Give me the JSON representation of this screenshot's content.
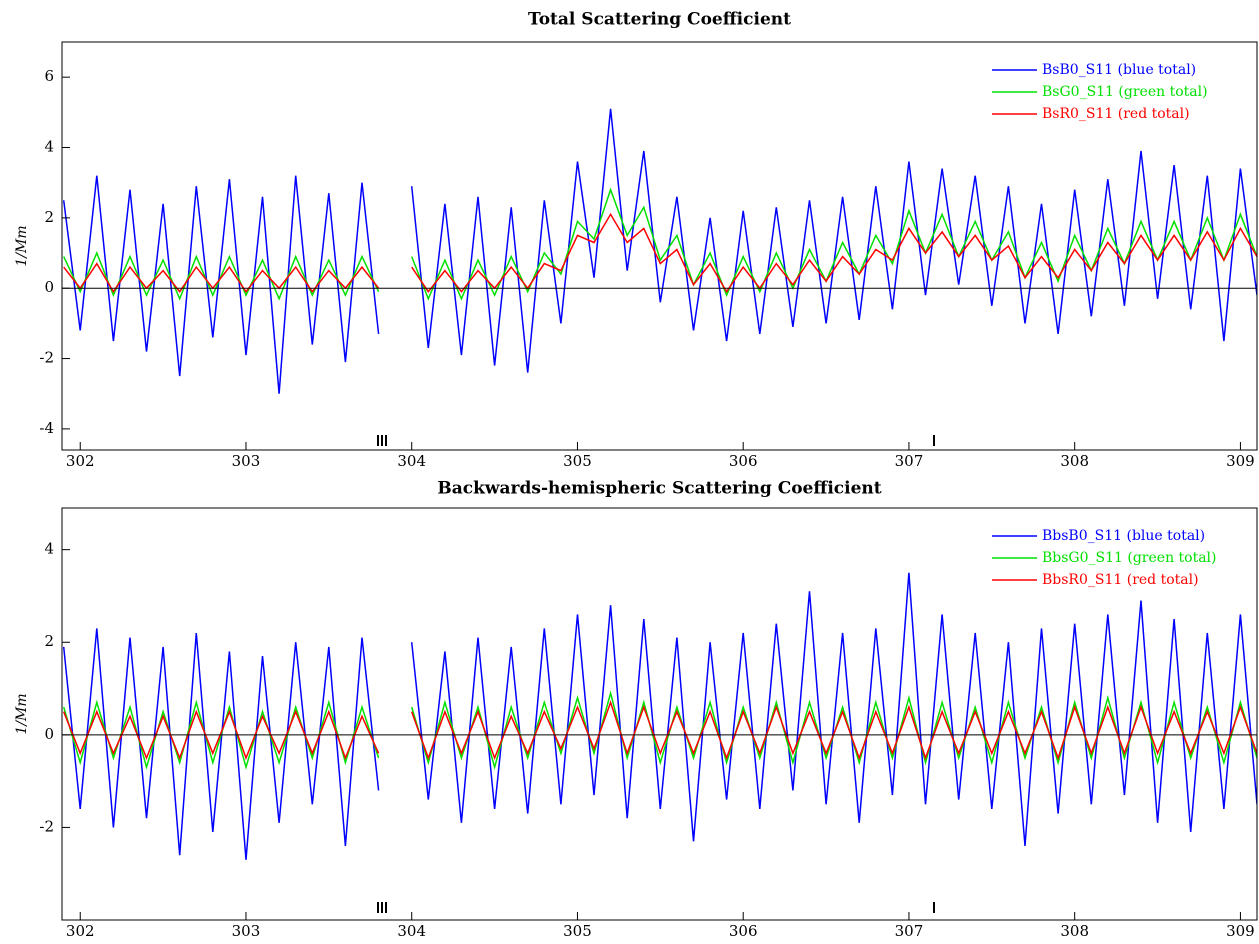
{
  "chart_data": [
    {
      "type": "line",
      "title": "Total Scattering Coefficient",
      "y_label": "1/Mm",
      "x": [
        301.9,
        302,
        302.1,
        302.2,
        302.3,
        302.4,
        302.5,
        302.6,
        302.7,
        302.8,
        302.9,
        303,
        303.1,
        303.2,
        303.3,
        303.4,
        303.5,
        303.6,
        303.7,
        303.8,
        303.9,
        304,
        304.1,
        304.2,
        304.3,
        304.4,
        304.5,
        304.6,
        304.7,
        304.8,
        304.9,
        305,
        305.1,
        305.2,
        305.3,
        305.4,
        305.5,
        305.6,
        305.7,
        305.8,
        305.9,
        306,
        306.1,
        306.2,
        306.3,
        306.4,
        306.5,
        306.6,
        306.7,
        306.8,
        306.9,
        307,
        307.1,
        307.2,
        307.3,
        307.4,
        307.5,
        307.6,
        307.7,
        307.8,
        307.9,
        308,
        308.1,
        308.2,
        308.3,
        308.4,
        308.5,
        308.6,
        308.7,
        308.8,
        308.9,
        309,
        309.1
      ],
      "series": [
        {
          "name": "BsB0_S11 (blue total)",
          "color": "#0000ff",
          "values": [
            2.5,
            -1.2,
            3.2,
            -1.5,
            2.8,
            -1.8,
            2.4,
            -2.5,
            2.9,
            -1.4,
            3.1,
            -1.9,
            2.6,
            -3.0,
            3.2,
            -1.6,
            2.7,
            -2.1,
            3.0,
            -1.3,
            null,
            2.9,
            -1.7,
            2.4,
            -1.9,
            2.6,
            -2.2,
            2.3,
            -2.4,
            2.5,
            -1.0,
            3.6,
            0.3,
            5.1,
            0.5,
            3.9,
            -0.4,
            2.6,
            -1.2,
            2.0,
            -1.5,
            2.2,
            -1.3,
            2.3,
            -1.1,
            2.5,
            -1.0,
            2.6,
            -0.9,
            2.9,
            -0.6,
            3.6,
            -0.2,
            3.4,
            0.1,
            3.2,
            -0.5,
            2.9,
            -1.0,
            2.4,
            -1.3,
            2.8,
            -0.8,
            3.1,
            -0.5,
            3.9,
            -0.3,
            3.5,
            -0.6,
            3.2,
            -1.5,
            3.4,
            -0.2
          ]
        },
        {
          "name": "BsG0_S11 (green total)",
          "color": "#00e000",
          "values": [
            0.9,
            -0.1,
            1.0,
            -0.2,
            0.9,
            -0.2,
            0.8,
            -0.3,
            0.9,
            -0.2,
            0.9,
            -0.2,
            0.8,
            -0.3,
            0.9,
            -0.2,
            0.8,
            -0.2,
            0.9,
            -0.1,
            null,
            0.9,
            -0.3,
            0.8,
            -0.3,
            0.8,
            -0.2,
            0.9,
            -0.1,
            1.0,
            0.4,
            1.9,
            1.4,
            2.8,
            1.5,
            2.3,
            0.8,
            1.5,
            0.1,
            1.0,
            -0.2,
            0.9,
            -0.1,
            1.0,
            0.0,
            1.1,
            0.2,
            1.3,
            0.4,
            1.5,
            0.7,
            2.2,
            1.0,
            2.1,
            0.9,
            1.9,
            0.8,
            1.6,
            0.3,
            1.3,
            0.2,
            1.5,
            0.5,
            1.7,
            0.7,
            1.9,
            0.8,
            1.9,
            0.8,
            2.0,
            0.8,
            2.1,
            0.9
          ]
        },
        {
          "name": "BsR0_S11 (red total)",
          "color": "#ff0000",
          "values": [
            0.6,
            0.0,
            0.7,
            -0.1,
            0.6,
            0.0,
            0.5,
            -0.1,
            0.6,
            0.0,
            0.6,
            -0.1,
            0.5,
            0.0,
            0.6,
            -0.1,
            0.5,
            0.0,
            0.6,
            0.0,
            null,
            0.6,
            -0.1,
            0.5,
            -0.1,
            0.5,
            0.0,
            0.6,
            0.0,
            0.7,
            0.5,
            1.5,
            1.3,
            2.1,
            1.3,
            1.7,
            0.7,
            1.1,
            0.1,
            0.7,
            -0.1,
            0.6,
            0.0,
            0.7,
            0.1,
            0.8,
            0.2,
            0.9,
            0.4,
            1.1,
            0.8,
            1.7,
            1.0,
            1.6,
            0.9,
            1.5,
            0.8,
            1.2,
            0.3,
            0.9,
            0.3,
            1.1,
            0.5,
            1.3,
            0.7,
            1.5,
            0.8,
            1.5,
            0.8,
            1.6,
            0.8,
            1.7,
            0.9
          ]
        }
      ],
      "xlim": [
        301.89,
        309.1
      ],
      "xticks": [
        302,
        303,
        304,
        305,
        306,
        307,
        308,
        309
      ],
      "ylim": [
        -4.6,
        7
      ],
      "yticks": [
        -4,
        -2,
        0,
        2,
        4,
        6
      ],
      "zero_line": true,
      "legend": "upper right"
    },
    {
      "type": "line",
      "title": "Backwards-hemispheric Scattering Coefficient",
      "y_label": "1/Mm",
      "x": [
        301.9,
        302,
        302.1,
        302.2,
        302.3,
        302.4,
        302.5,
        302.6,
        302.7,
        302.8,
        302.9,
        303,
        303.1,
        303.2,
        303.3,
        303.4,
        303.5,
        303.6,
        303.7,
        303.8,
        303.9,
        304,
        304.1,
        304.2,
        304.3,
        304.4,
        304.5,
        304.6,
        304.7,
        304.8,
        304.9,
        305,
        305.1,
        305.2,
        305.3,
        305.4,
        305.5,
        305.6,
        305.7,
        305.8,
        305.9,
        306,
        306.1,
        306.2,
        306.3,
        306.4,
        306.5,
        306.6,
        306.7,
        306.8,
        306.9,
        307,
        307.1,
        307.2,
        307.3,
        307.4,
        307.5,
        307.6,
        307.7,
        307.8,
        307.9,
        308,
        308.1,
        308.2,
        308.3,
        308.4,
        308.5,
        308.6,
        308.7,
        308.8,
        308.9,
        309,
        309.1
      ],
      "series": [
        {
          "name": "BbsB0_S11 (blue total)",
          "color": "#0000ff",
          "values": [
            1.9,
            -1.6,
            2.3,
            -2.0,
            2.1,
            -1.8,
            1.9,
            -2.6,
            2.2,
            -2.1,
            1.8,
            -2.7,
            1.7,
            -1.9,
            2.0,
            -1.5,
            1.9,
            -2.4,
            2.1,
            -1.2,
            null,
            2.0,
            -1.4,
            1.8,
            -1.9,
            2.1,
            -1.6,
            1.9,
            -1.7,
            2.3,
            -1.5,
            2.6,
            -1.3,
            2.8,
            -1.8,
            2.5,
            -1.6,
            2.1,
            -2.3,
            2.0,
            -1.4,
            2.2,
            -1.6,
            2.4,
            -1.2,
            3.1,
            -1.5,
            2.2,
            -1.9,
            2.3,
            -1.3,
            3.5,
            -1.5,
            2.6,
            -1.4,
            2.2,
            -1.6,
            2.0,
            -2.4,
            2.3,
            -1.7,
            2.4,
            -1.5,
            2.6,
            -1.3,
            2.9,
            -1.9,
            2.5,
            -2.1,
            2.2,
            -1.6,
            2.6,
            -1.5
          ]
        },
        {
          "name": "BbsG0_S11 (green total)",
          "color": "#00e000",
          "values": [
            0.6,
            -0.6,
            0.7,
            -0.5,
            0.6,
            -0.7,
            0.5,
            -0.6,
            0.7,
            -0.6,
            0.6,
            -0.7,
            0.5,
            -0.6,
            0.6,
            -0.5,
            0.7,
            -0.6,
            0.6,
            -0.5,
            null,
            0.6,
            -0.6,
            0.7,
            -0.5,
            0.6,
            -0.7,
            0.6,
            -0.5,
            0.7,
            -0.4,
            0.8,
            -0.4,
            0.9,
            -0.5,
            0.7,
            -0.6,
            0.6,
            -0.5,
            0.7,
            -0.6,
            0.6,
            -0.5,
            0.7,
            -0.6,
            0.7,
            -0.5,
            0.6,
            -0.6,
            0.7,
            -0.5,
            0.8,
            -0.6,
            0.7,
            -0.5,
            0.6,
            -0.6,
            0.7,
            -0.5,
            0.6,
            -0.6,
            0.7,
            -0.5,
            0.8,
            -0.5,
            0.7,
            -0.6,
            0.7,
            -0.5,
            0.6,
            -0.6,
            0.7,
            -0.5
          ]
        },
        {
          "name": "BbsR0_S11 (red total)",
          "color": "#ff0000",
          "values": [
            0.5,
            -0.4,
            0.5,
            -0.4,
            0.4,
            -0.5,
            0.4,
            -0.5,
            0.5,
            -0.4,
            0.5,
            -0.5,
            0.4,
            -0.4,
            0.5,
            -0.4,
            0.5,
            -0.5,
            0.4,
            -0.4,
            null,
            0.5,
            -0.5,
            0.5,
            -0.4,
            0.5,
            -0.5,
            0.4,
            -0.4,
            0.5,
            -0.3,
            0.6,
            -0.3,
            0.7,
            -0.4,
            0.6,
            -0.4,
            0.5,
            -0.4,
            0.5,
            -0.5,
            0.5,
            -0.4,
            0.6,
            -0.4,
            0.5,
            -0.4,
            0.5,
            -0.5,
            0.5,
            -0.4,
            0.6,
            -0.5,
            0.5,
            -0.4,
            0.5,
            -0.4,
            0.5,
            -0.4,
            0.5,
            -0.5,
            0.6,
            -0.4,
            0.6,
            -0.4,
            0.6,
            -0.4,
            0.5,
            -0.4,
            0.5,
            -0.4,
            0.6,
            -0.4
          ]
        }
      ],
      "xlim": [
        301.89,
        309.1
      ],
      "xticks": [
        302,
        303,
        304,
        305,
        306,
        307,
        308,
        309
      ],
      "ylim": [
        -4,
        4.9
      ],
      "yticks": [
        -2,
        0,
        2,
        4
      ],
      "zero_line": true,
      "legend": "upper right"
    }
  ]
}
